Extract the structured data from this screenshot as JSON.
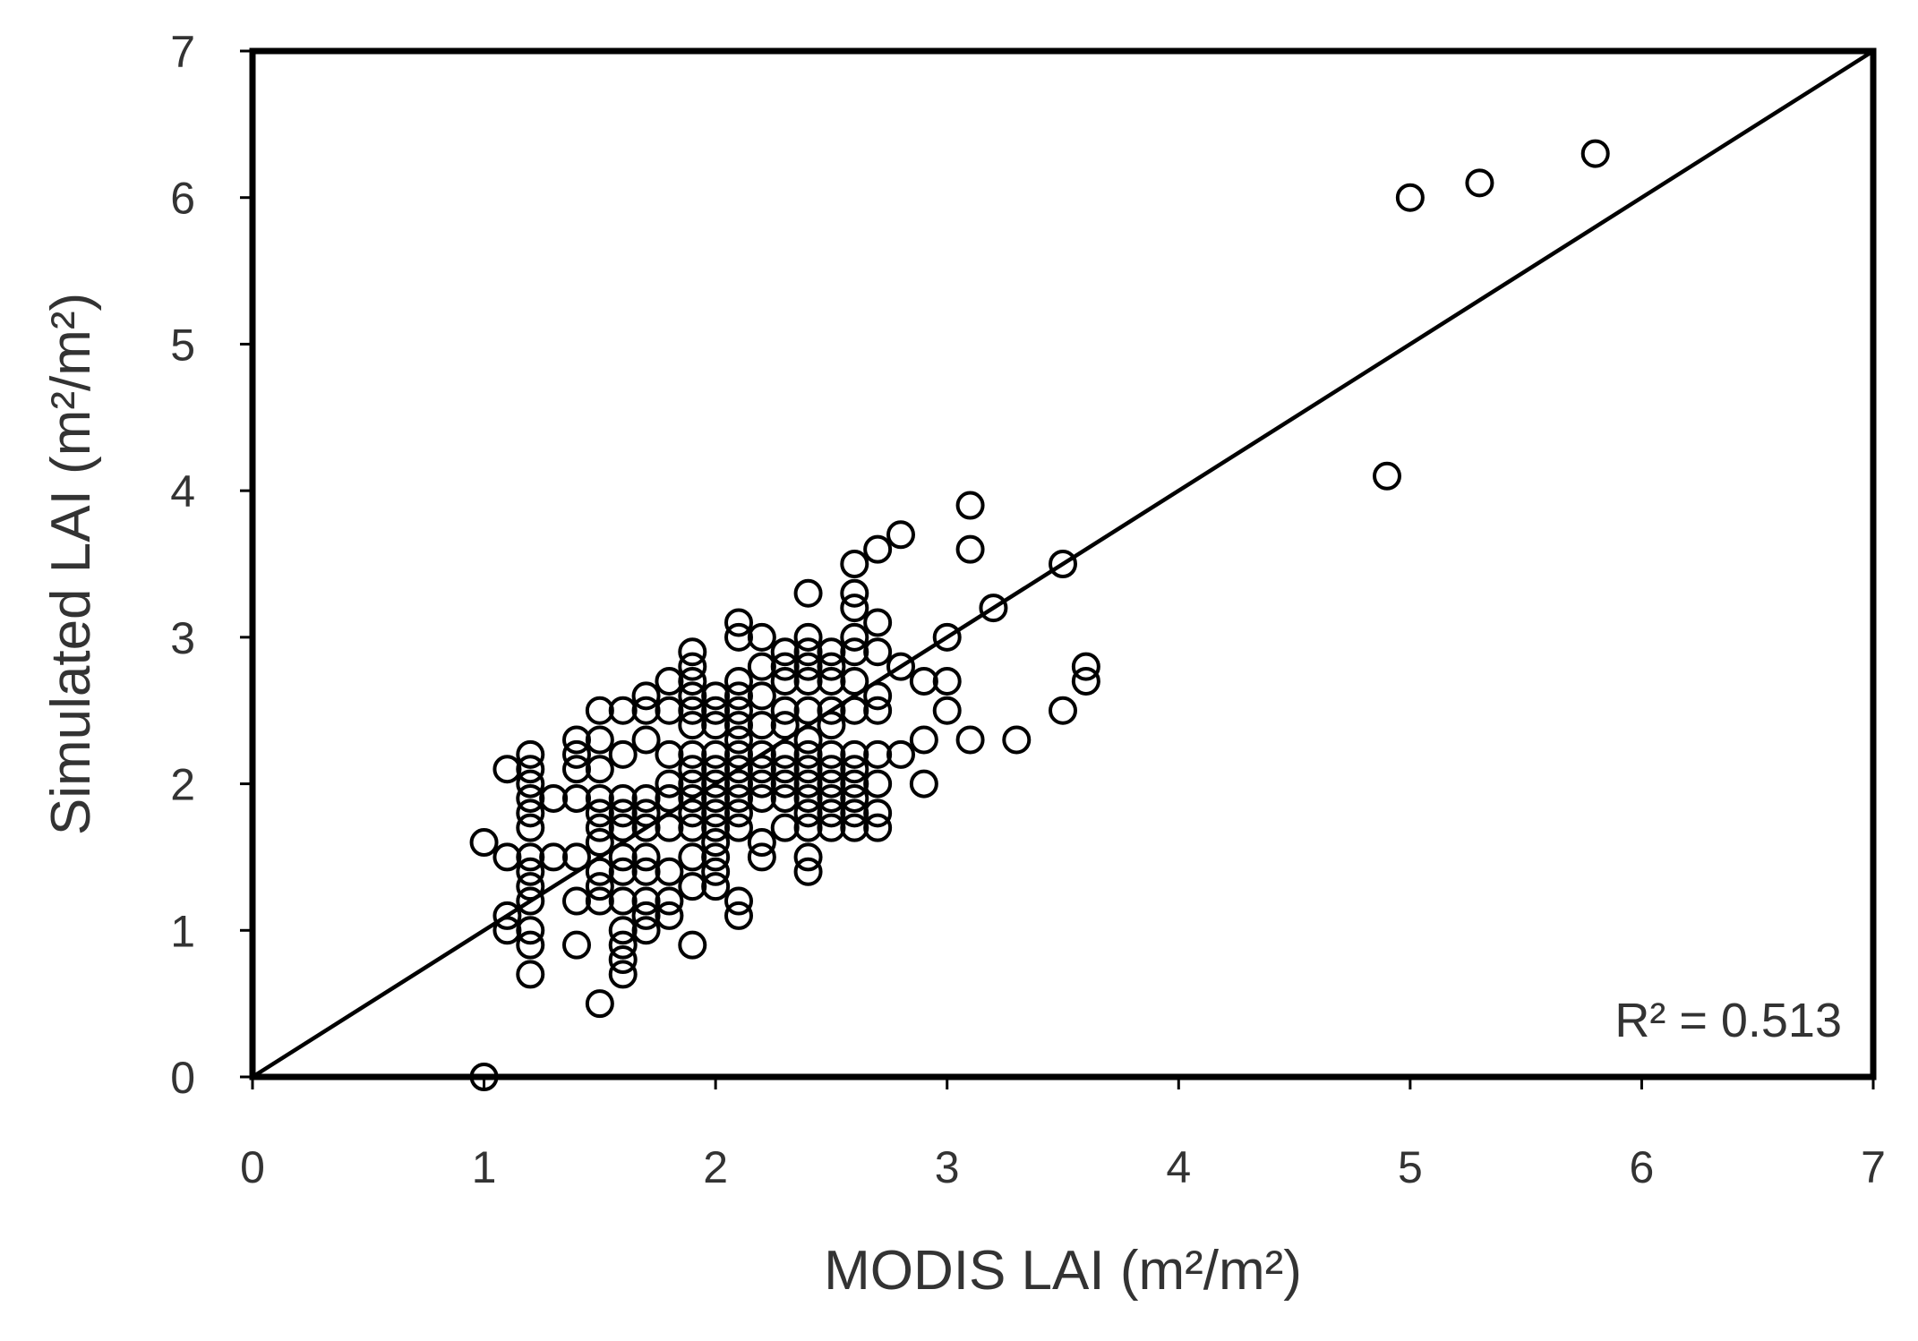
{
  "chart_data": {
    "type": "scatter",
    "xlabel": "MODIS LAI (m²/m²)",
    "ylabel": "Simulated LAI (m²/m²)",
    "xlim": [
      0,
      7
    ],
    "ylim": [
      0,
      7
    ],
    "xticks": [
      "0",
      "1",
      "2",
      "3",
      "4",
      "5",
      "6",
      "7"
    ],
    "yticks": [
      "0",
      "1",
      "2",
      "3",
      "4",
      "5",
      "6",
      "7"
    ],
    "grid": false,
    "marker": "open-circle",
    "reference_line": {
      "from": [
        0,
        0
      ],
      "to": [
        7,
        7
      ]
    },
    "annotation": "R² = 0.513",
    "series": [
      {
        "points": [
          [
            1.0,
            0.0
          ],
          [
            1.0,
            1.6
          ],
          [
            1.1,
            1.5
          ],
          [
            1.1,
            2.1
          ],
          [
            1.1,
            1.1
          ],
          [
            1.1,
            1.0
          ],
          [
            1.2,
            2.2
          ],
          [
            1.2,
            2.1
          ],
          [
            1.2,
            2.0
          ],
          [
            1.2,
            1.9
          ],
          [
            1.2,
            1.8
          ],
          [
            1.2,
            1.7
          ],
          [
            1.2,
            1.5
          ],
          [
            1.2,
            1.4
          ],
          [
            1.2,
            1.3
          ],
          [
            1.2,
            1.2
          ],
          [
            1.2,
            1.0
          ],
          [
            1.2,
            0.9
          ],
          [
            1.2,
            0.7
          ],
          [
            1.3,
            1.9
          ],
          [
            1.3,
            1.5
          ],
          [
            1.4,
            2.3
          ],
          [
            1.4,
            2.2
          ],
          [
            1.4,
            2.1
          ],
          [
            1.4,
            1.9
          ],
          [
            1.4,
            1.5
          ],
          [
            1.4,
            1.2
          ],
          [
            1.4,
            0.9
          ],
          [
            1.5,
            2.5
          ],
          [
            1.5,
            2.3
          ],
          [
            1.5,
            2.1
          ],
          [
            1.5,
            1.9
          ],
          [
            1.5,
            1.8
          ],
          [
            1.5,
            1.7
          ],
          [
            1.5,
            1.6
          ],
          [
            1.5,
            1.4
          ],
          [
            1.5,
            1.3
          ],
          [
            1.5,
            1.2
          ],
          [
            1.5,
            0.5
          ],
          [
            1.6,
            2.5
          ],
          [
            1.6,
            2.2
          ],
          [
            1.6,
            1.9
          ],
          [
            1.6,
            1.8
          ],
          [
            1.6,
            1.7
          ],
          [
            1.6,
            1.5
          ],
          [
            1.6,
            1.4
          ],
          [
            1.6,
            1.2
          ],
          [
            1.6,
            1.0
          ],
          [
            1.6,
            0.9
          ],
          [
            1.6,
            0.8
          ],
          [
            1.6,
            0.7
          ],
          [
            1.7,
            2.6
          ],
          [
            1.7,
            2.5
          ],
          [
            1.7,
            2.3
          ],
          [
            1.7,
            1.9
          ],
          [
            1.7,
            1.8
          ],
          [
            1.7,
            1.7
          ],
          [
            1.7,
            1.5
          ],
          [
            1.7,
            1.4
          ],
          [
            1.7,
            1.2
          ],
          [
            1.7,
            1.1
          ],
          [
            1.7,
            1.0
          ],
          [
            1.8,
            2.7
          ],
          [
            1.8,
            2.5
          ],
          [
            1.8,
            2.2
          ],
          [
            1.8,
            2.0
          ],
          [
            1.8,
            1.9
          ],
          [
            1.8,
            1.7
          ],
          [
            1.8,
            1.4
          ],
          [
            1.8,
            1.2
          ],
          [
            1.8,
            1.1
          ],
          [
            1.9,
            2.9
          ],
          [
            1.9,
            2.8
          ],
          [
            1.9,
            2.7
          ],
          [
            1.9,
            2.6
          ],
          [
            1.9,
            2.5
          ],
          [
            1.9,
            2.4
          ],
          [
            1.9,
            2.2
          ],
          [
            1.9,
            2.1
          ],
          [
            1.9,
            2.0
          ],
          [
            1.9,
            1.9
          ],
          [
            1.9,
            1.8
          ],
          [
            1.9,
            1.7
          ],
          [
            1.9,
            1.5
          ],
          [
            1.9,
            1.3
          ],
          [
            1.9,
            0.9
          ],
          [
            2.0,
            2.6
          ],
          [
            2.0,
            2.5
          ],
          [
            2.0,
            2.4
          ],
          [
            2.0,
            2.2
          ],
          [
            2.0,
            2.1
          ],
          [
            2.0,
            2.0
          ],
          [
            2.0,
            1.9
          ],
          [
            2.0,
            1.8
          ],
          [
            2.0,
            1.7
          ],
          [
            2.0,
            1.6
          ],
          [
            2.0,
            1.5
          ],
          [
            2.0,
            1.4
          ],
          [
            2.0,
            1.3
          ],
          [
            2.1,
            3.1
          ],
          [
            2.1,
            3.0
          ],
          [
            2.1,
            2.7
          ],
          [
            2.1,
            2.6
          ],
          [
            2.1,
            2.5
          ],
          [
            2.1,
            2.4
          ],
          [
            2.1,
            2.3
          ],
          [
            2.1,
            2.2
          ],
          [
            2.1,
            2.1
          ],
          [
            2.1,
            2.0
          ],
          [
            2.1,
            1.9
          ],
          [
            2.1,
            1.8
          ],
          [
            2.1,
            1.7
          ],
          [
            2.1,
            1.2
          ],
          [
            2.1,
            1.1
          ],
          [
            2.2,
            3.0
          ],
          [
            2.2,
            2.8
          ],
          [
            2.2,
            2.6
          ],
          [
            2.2,
            2.4
          ],
          [
            2.2,
            2.2
          ],
          [
            2.2,
            2.1
          ],
          [
            2.2,
            2.0
          ],
          [
            2.2,
            1.9
          ],
          [
            2.2,
            1.6
          ],
          [
            2.2,
            1.5
          ],
          [
            2.3,
            2.9
          ],
          [
            2.3,
            2.8
          ],
          [
            2.3,
            2.7
          ],
          [
            2.3,
            2.5
          ],
          [
            2.3,
            2.4
          ],
          [
            2.3,
            2.2
          ],
          [
            2.3,
            2.1
          ],
          [
            2.3,
            2.0
          ],
          [
            2.3,
            1.9
          ],
          [
            2.3,
            1.7
          ],
          [
            2.4,
            3.3
          ],
          [
            2.4,
            3.0
          ],
          [
            2.4,
            2.9
          ],
          [
            2.4,
            2.8
          ],
          [
            2.4,
            2.7
          ],
          [
            2.4,
            2.5
          ],
          [
            2.4,
            2.3
          ],
          [
            2.4,
            2.2
          ],
          [
            2.4,
            2.1
          ],
          [
            2.4,
            2.0
          ],
          [
            2.4,
            1.9
          ],
          [
            2.4,
            1.8
          ],
          [
            2.4,
            1.7
          ],
          [
            2.4,
            1.5
          ],
          [
            2.4,
            1.4
          ],
          [
            2.5,
            2.9
          ],
          [
            2.5,
            2.8
          ],
          [
            2.5,
            2.7
          ],
          [
            2.5,
            2.5
          ],
          [
            2.5,
            2.4
          ],
          [
            2.5,
            2.2
          ],
          [
            2.5,
            2.1
          ],
          [
            2.5,
            2.0
          ],
          [
            2.5,
            1.9
          ],
          [
            2.5,
            1.8
          ],
          [
            2.5,
            1.7
          ],
          [
            2.6,
            3.5
          ],
          [
            2.6,
            3.3
          ],
          [
            2.6,
            3.2
          ],
          [
            2.6,
            3.0
          ],
          [
            2.6,
            2.9
          ],
          [
            2.6,
            2.7
          ],
          [
            2.6,
            2.5
          ],
          [
            2.6,
            2.2
          ],
          [
            2.6,
            2.1
          ],
          [
            2.6,
            2.0
          ],
          [
            2.6,
            1.9
          ],
          [
            2.6,
            1.8
          ],
          [
            2.6,
            1.7
          ],
          [
            2.7,
            3.6
          ],
          [
            2.7,
            3.1
          ],
          [
            2.7,
            2.9
          ],
          [
            2.7,
            2.6
          ],
          [
            2.7,
            2.5
          ],
          [
            2.7,
            2.2
          ],
          [
            2.7,
            2.0
          ],
          [
            2.7,
            1.8
          ],
          [
            2.7,
            1.7
          ],
          [
            2.8,
            3.7
          ],
          [
            2.8,
            2.8
          ],
          [
            2.8,
            2.2
          ],
          [
            2.9,
            2.7
          ],
          [
            2.9,
            2.3
          ],
          [
            2.9,
            2.0
          ],
          [
            3.0,
            3.0
          ],
          [
            3.0,
            2.7
          ],
          [
            3.0,
            2.5
          ],
          [
            3.1,
            3.9
          ],
          [
            3.1,
            3.6
          ],
          [
            3.1,
            2.3
          ],
          [
            3.2,
            3.2
          ],
          [
            3.3,
            2.3
          ],
          [
            3.5,
            3.5
          ],
          [
            3.5,
            2.5
          ],
          [
            3.6,
            2.8
          ],
          [
            3.6,
            2.7
          ],
          [
            4.9,
            4.1
          ],
          [
            5.0,
            6.0
          ],
          [
            5.3,
            6.1
          ],
          [
            5.8,
            6.3
          ]
        ]
      }
    ]
  }
}
